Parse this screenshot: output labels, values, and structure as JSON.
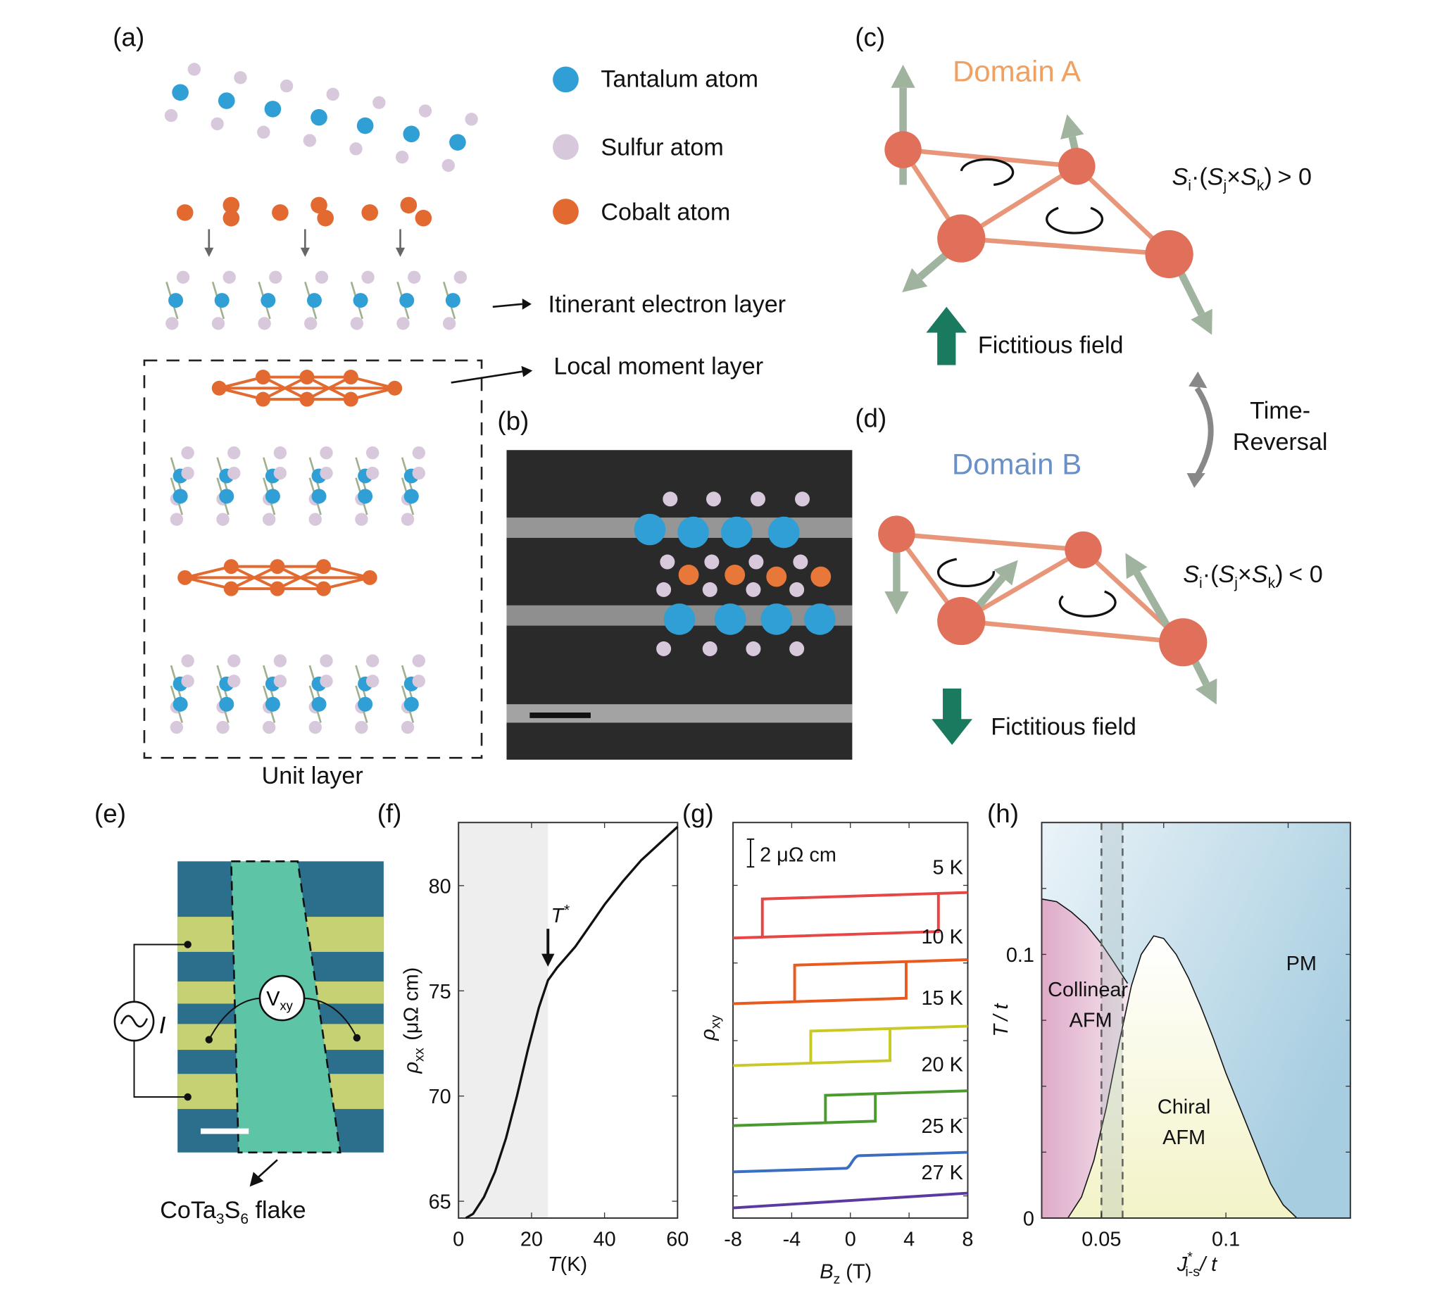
{
  "panels": {
    "a": {
      "label": "(a)",
      "legend": [
        {
          "label": "Tantalum atom",
          "color": "#2f9fd6"
        },
        {
          "label": "Sulfur atom",
          "color": "#d8c8dc"
        },
        {
          "label": "Cobalt atom",
          "color": "#e26a30"
        }
      ],
      "itinerant": "Itinerant electron layer",
      "local": "Local moment layer",
      "unit": "Unit layer"
    },
    "b": {
      "label": "(b)"
    },
    "c": {
      "label": "(c)",
      "domain": "Domain A",
      "domain_color": "#f0a060",
      "chirality": {
        "s": "S",
        "i": "i",
        "j": "j",
        "k": "k",
        "dot": "·(",
        "cross": "×",
        "close": ")",
        "relation": "> 0"
      },
      "field": "Fictitious field",
      "field_direction": "up"
    },
    "d": {
      "label": "(d)",
      "domain": "Domain B",
      "domain_color": "#6a90c8",
      "chirality": {
        "s": "S",
        "i": "i",
        "j": "j",
        "k": "k",
        "dot": "·(",
        "cross": "×",
        "close": ")",
        "relation": "< 0"
      },
      "field": "Fictitious field",
      "field_direction": "down"
    },
    "time_reversal": {
      "line1": "Time-",
      "line2": "Reversal"
    },
    "e": {
      "label": "(e)",
      "vxy": "V",
      "vxy_sub": "xy",
      "current": "I",
      "flake": "CoTa",
      "flake_3": "3",
      "flake_S": "S",
      "flake_6": "6",
      "flake_end": " flake"
    }
  },
  "chart_data": [
    {
      "panel": "(f)",
      "type": "line",
      "xlabel": "T (K)",
      "ylabel": "ρxx (μΩ cm)",
      "xlabel_parts": {
        "var": "T",
        "unit": "(K)"
      },
      "ylabel_parts": {
        "var": "ρ",
        "sub": "xx",
        "unit": "(μΩ cm)"
      },
      "xlim": [
        0,
        60
      ],
      "ylim": [
        64.2,
        83
      ],
      "xticks": [
        "0",
        "20",
        "40",
        "60"
      ],
      "yticks": [
        "65",
        "70",
        "75",
        "80"
      ],
      "shaded_region": [
        0,
        24.5
      ],
      "annotation": {
        "text": "T",
        "sup": "*",
        "x": 24.5
      },
      "x": [
        2,
        4,
        7,
        10,
        13,
        16,
        19,
        22,
        24.5,
        27,
        30,
        32,
        36,
        40,
        45,
        50,
        55,
        60
      ],
      "y": [
        64.2,
        64.4,
        65.2,
        66.4,
        68.0,
        70.0,
        72.2,
        74.2,
        75.5,
        76.1,
        76.7,
        77.1,
        78.1,
        79.1,
        80.2,
        81.2,
        82.0,
        82.8
      ]
    },
    {
      "panel": "(g)",
      "type": "line",
      "xlabel_parts": {
        "var": "B",
        "sub": "z",
        "unit": "(T)"
      },
      "ylabel_parts": {
        "var": "ρ",
        "sub": "xy"
      },
      "xlim": [
        -8,
        8
      ],
      "xticks": [
        "-8",
        "-4",
        "0",
        "4",
        "8"
      ],
      "scale_bar": "2 μΩ cm",
      "series": [
        {
          "name": "5 K",
          "color": "#e84545",
          "coercive_field_T": 6.0,
          "jump_uohm_cm": 2.5
        },
        {
          "name": "10 K",
          "color": "#ea5a1e",
          "coercive_field_T": 3.8,
          "jump_uohm_cm": 2.4
        },
        {
          "name": "15 K",
          "color": "#c9c925",
          "coercive_field_T": 2.7,
          "jump_uohm_cm": 2.1
        },
        {
          "name": "20 K",
          "color": "#4a9a30",
          "coercive_field_T": 1.7,
          "jump_uohm_cm": 1.8
        },
        {
          "name": "25 K",
          "color": "#3a6ec0",
          "coercive_field_T": 0.3,
          "jump_uohm_cm": 0.8
        },
        {
          "name": "27 K",
          "color": "#5a3aa0",
          "coercive_field_T": 0,
          "jump_uohm_cm": 0
        }
      ]
    },
    {
      "panel": "(h)",
      "type": "area",
      "xlabel_parts": {
        "var": "J",
        "sup": "*",
        "sub": "i-s",
        "unit": "/ t"
      },
      "ylabel_parts": {
        "var": "T",
        "unit": "/ t"
      },
      "xlim": [
        0.026,
        0.15
      ],
      "ylim": [
        0,
        0.15
      ],
      "xticks": [
        "0.05",
        "0.1"
      ],
      "yticks": [
        "0",
        "0.1"
      ],
      "dashed_x": [
        0.05,
        0.0585
      ],
      "regions": [
        {
          "name": "PM",
          "color": "#1e4a60"
        },
        {
          "name": "Collinear AFM",
          "color": "#c83030",
          "boundary_x": [
            0.026,
            0.032,
            0.038,
            0.044,
            0.05,
            0.055,
            0.0605
          ],
          "boundary_y": [
            0.121,
            0.12,
            0.116,
            0.111,
            0.104,
            0.097,
            0.089
          ]
        },
        {
          "name": "Chiral AFM",
          "color": "#c0502a",
          "boundary_x": [
            0.0365,
            0.042,
            0.047,
            0.052,
            0.057,
            0.062,
            0.066,
            0.071,
            0.075,
            0.08,
            0.085,
            0.09,
            0.095,
            0.1,
            0.106,
            0.112,
            0.118,
            0.123,
            0.1285
          ],
          "boundary_y": [
            0,
            0.008,
            0.022,
            0.042,
            0.066,
            0.088,
            0.1,
            0.107,
            0.106,
            0.1,
            0.091,
            0.08,
            0.068,
            0.055,
            0.041,
            0.027,
            0.013,
            0.005,
            0
          ]
        }
      ],
      "labels": {
        "pm": "PM",
        "collinear1": "Collinear",
        "collinear2": "AFM",
        "chiral1": "Chiral",
        "chiral2": "AFM"
      }
    }
  ]
}
